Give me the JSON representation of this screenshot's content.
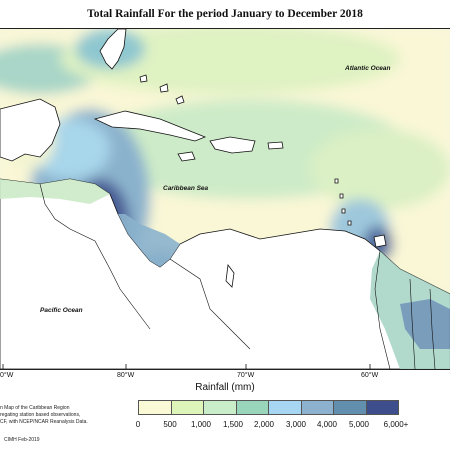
{
  "title": "Total Rainfall For the period January to December 2018",
  "map": {
    "labels": {
      "atlantic": "Atlantic Ocean",
      "caribbean": "Caribbean Sea",
      "pacific": "Pacific Ocean"
    },
    "longitude_ticks": [
      "0°W",
      "80°W",
      "70°W",
      "60°W"
    ]
  },
  "legend": {
    "title": "Rainfall (mm)",
    "breaks": [
      "0",
      "500",
      "1,000",
      "1,500",
      "2,000",
      "3,000",
      "4,000",
      "5,000",
      "6,000+"
    ],
    "colors": [
      "#fafad6",
      "#ddf5b9",
      "#caedc9",
      "#98d5bb",
      "#a7d6f3",
      "#8cb2cf",
      "#628fae",
      "#3e4d8c"
    ]
  },
  "notes": {
    "line1": "n Map of the Caribbean Region",
    "line2": "regating station based observations,",
    "line3": "CF, with NCEP/NCAR Reanalysis Data.",
    "credit": "CIMH Feb-2019"
  }
}
